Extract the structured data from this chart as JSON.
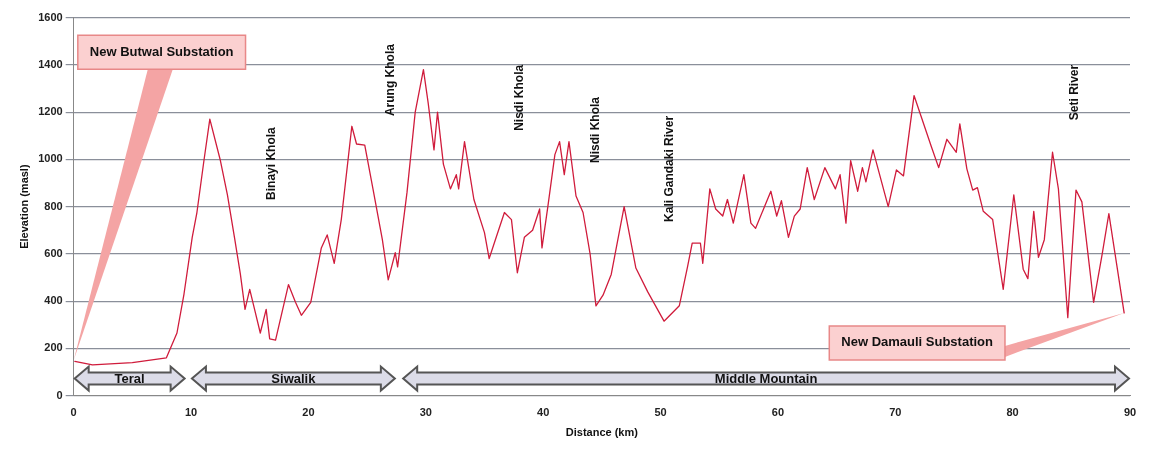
{
  "chart_data": {
    "type": "line",
    "xlabel": "Distance (km)",
    "ylabel": "Elevation (masl)",
    "xlim": [
      0,
      90
    ],
    "xticks": [
      0,
      10,
      20,
      30,
      40,
      50,
      60,
      70,
      80,
      90
    ],
    "ylim": [
      0,
      1600
    ],
    "yticks": [
      0,
      200,
      400,
      600,
      800,
      1000,
      1200,
      1400,
      1600
    ],
    "grid": "y",
    "legend": false,
    "series": [
      {
        "color": "#d01c3c",
        "x": [
          0.1,
          1.6,
          5,
          7.9,
          8.8,
          9.4,
          10.1,
          10.5,
          11.1,
          11.6,
          12.5,
          13.1,
          13.7,
          14.2,
          14.6,
          15.0,
          15.9,
          16.4,
          16.7,
          17.2,
          18.3,
          18.9,
          19.4,
          20.2,
          21.1,
          21.6,
          22.2,
          22.8,
          23.7,
          24.1,
          24.8,
          25.5,
          26.3,
          26.8,
          27.4,
          27.6,
          28.4,
          29.1,
          29.8,
          30.2,
          30.7,
          31.0,
          31.5,
          32.1,
          32.6,
          32.8,
          33.3,
          34.1,
          35.0,
          35.4,
          36.0,
          36.7,
          37.3,
          37.8,
          38.4,
          39.1,
          39.7,
          39.9,
          40.4,
          41.0,
          41.4,
          41.8,
          42.2,
          42.8,
          43.4,
          44.0,
          44.5,
          45.1,
          45.8,
          46.9,
          47.9,
          48.9,
          50.3,
          51.6,
          52.3,
          52.7,
          53.4,
          53.6,
          54.2,
          54.7,
          55.3,
          55.7,
          56.2,
          57.1,
          57.7,
          58.1,
          59.4,
          59.9,
          60.3,
          60.9,
          61.4,
          61.9,
          62.5,
          63.1,
          64.0,
          64.9,
          65.3,
          65.8,
          66.2,
          66.8,
          67.2,
          67.5,
          68.1,
          69.4,
          70.1,
          70.7,
          71.6,
          73.1,
          73.7,
          74.4,
          75.2,
          75.5,
          76.1,
          76.6,
          77.0,
          77.5,
          78.3,
          79.2,
          80.1,
          80.9,
          81.3,
          81.8,
          82.2,
          82.7,
          83.4,
          83.9,
          84.7,
          85.4,
          85.9,
          86.9,
          87.6,
          88.2,
          89.5
        ],
        "values": [
          145,
          130,
          140,
          160,
          265,
          430,
          670,
          775,
          995,
          1170,
          995,
          850,
          670,
          515,
          365,
          450,
          265,
          365,
          240,
          235,
          470,
          395,
          340,
          395,
          625,
          680,
          560,
          745,
          1140,
          1065,
          1060,
          875,
          660,
          490,
          605,
          545,
          860,
          1200,
          1380,
          1240,
          1040,
          1200,
          980,
          875,
          935,
          875,
          1075,
          830,
          690,
          580,
          670,
          775,
          745,
          520,
          670,
          700,
          790,
          625,
          800,
          1020,
          1075,
          935,
          1075,
          845,
          775,
          600,
          380,
          425,
          513,
          800,
          540,
          440,
          315,
          380,
          545,
          645,
          645,
          560,
          875,
          790,
          760,
          830,
          730,
          935,
          730,
          708,
          865,
          760,
          825,
          670,
          760,
          790,
          965,
          830,
          965,
          875,
          935,
          730,
          995,
          865,
          965,
          905,
          1040,
          800,
          955,
          930,
          1270,
          1050,
          965,
          1085,
          1030,
          1150,
          960,
          870,
          880,
          780,
          745,
          450,
          850,
          535,
          495,
          780,
          585,
          660,
          1030,
          875,
          330,
          870,
          820,
          395,
          590,
          770,
          350
        ]
      }
    ],
    "annotations": [
      {
        "text": "New Butwal Substation",
        "x": 0,
        "y": 150
      },
      "Binayi Khola",
      "Arung Khola",
      "Nisdi Khola",
      "Nisdi Khola",
      "Kali Gandaki River",
      "Seti River",
      "Teral",
      "Siwalik",
      "Middle Mountain",
      {
        "text": "New Damauli Substation",
        "x": 89.5,
        "y": 350
      }
    ]
  }
}
